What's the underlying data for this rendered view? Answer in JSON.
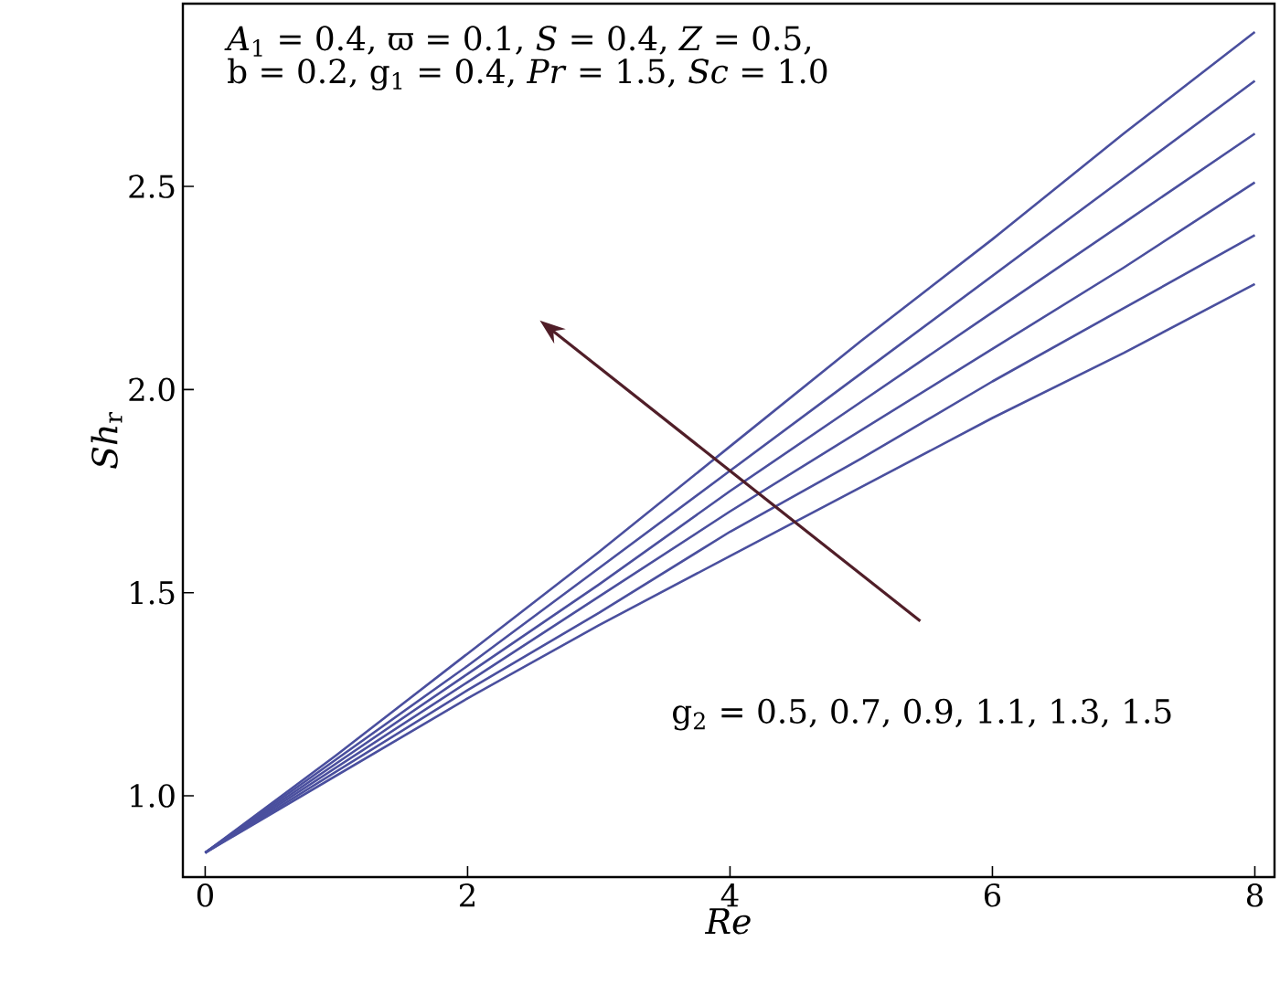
{
  "chart_data": {
    "type": "line",
    "xlabel": "*Re*",
    "ylabel": "*Sh*$_{r}$",
    "x": [
      0,
      1,
      2,
      3,
      4,
      5,
      6,
      7,
      8
    ],
    "series": [
      {
        "color": "#4a4f9e",
        "values": [
          0.86,
          1.1,
          1.35,
          1.6,
          1.86,
          2.12,
          2.37,
          2.63,
          2.88
        ]
      },
      {
        "color": "#4a4f9e",
        "values": [
          0.86,
          1.09,
          1.32,
          1.56,
          1.8,
          2.04,
          2.28,
          2.52,
          2.76
        ]
      },
      {
        "color": "#4a4f9e",
        "values": [
          0.86,
          1.08,
          1.3,
          1.52,
          1.75,
          1.97,
          2.19,
          2.41,
          2.63
        ]
      },
      {
        "color": "#4a4f9e",
        "values": [
          0.86,
          1.07,
          1.28,
          1.49,
          1.7,
          1.9,
          2.1,
          2.3,
          2.51
        ]
      },
      {
        "color": "#4a4f9e",
        "values": [
          0.86,
          1.06,
          1.26,
          1.45,
          1.65,
          1.83,
          2.02,
          2.2,
          2.38
        ]
      },
      {
        "color": "#4a4f9e",
        "values": [
          0.86,
          1.05,
          1.24,
          1.42,
          1.59,
          1.76,
          1.93,
          2.09,
          2.26
        ]
      }
    ],
    "xlim": [
      -0.17,
      8.15
    ],
    "ylim": [
      0.8,
      2.95
    ],
    "xticks": [
      0,
      2,
      4,
      6,
      8
    ],
    "yticks": [
      {
        "value": 1.0,
        "label": "1.0"
      },
      {
        "value": 1.5,
        "label": "1.5"
      },
      {
        "value": 2.0,
        "label": "2.0"
      },
      {
        "value": 2.5,
        "label": "2.5"
      }
    ],
    "grid": false,
    "annotations": [
      "*A*$_{1}$ = 0.4, ϖ = 0.1, *S* = 0.4, *Z* = 0.5,",
      "b = 0.2, g$_{1}$ = 0.4, *Pr* = 1.5, *Sc* = 1.0",
      "g$_{2}$ = 0.5, 0.7, 0.9, 1.1, 1.3, 1.5"
    ]
  }
}
